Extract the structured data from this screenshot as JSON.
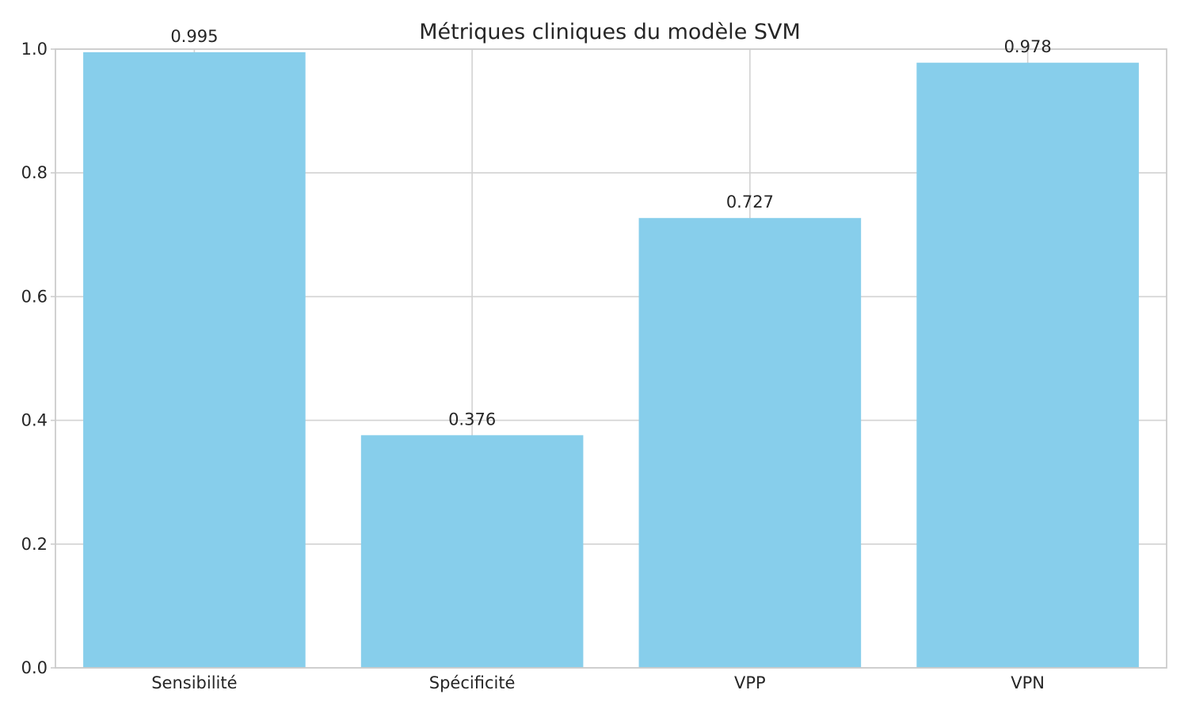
{
  "chart_data": {
    "type": "bar",
    "title": "Métriques cliniques du modèle SVM",
    "xlabel": "",
    "ylabel": "",
    "categories": [
      "Sensibilité",
      "Spécificité",
      "VPP",
      "VPN"
    ],
    "values": [
      0.995,
      0.376,
      0.727,
      0.978
    ],
    "value_labels": [
      "0.995",
      "0.376",
      "0.727",
      "0.978"
    ],
    "ylim": [
      0,
      1.0
    ],
    "yticks": [
      0.0,
      0.2,
      0.4,
      0.6,
      0.8,
      1.0
    ],
    "ytick_labels": [
      "0.0",
      "0.2",
      "0.4",
      "0.6",
      "0.8",
      "1.0"
    ],
    "grid": true,
    "legend": "none",
    "colors": {
      "bar": "#87ceeb",
      "grid": "#d2d2d2",
      "frame": "#cccccc",
      "text": "#262626"
    }
  }
}
